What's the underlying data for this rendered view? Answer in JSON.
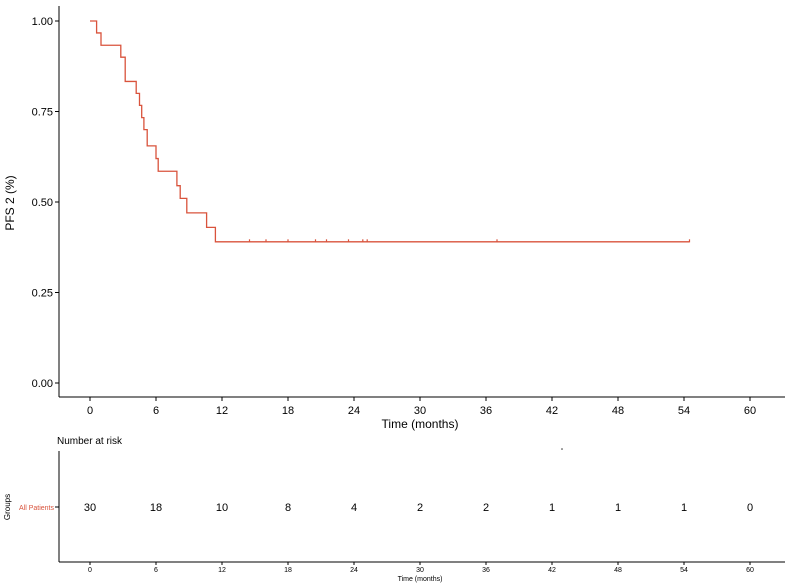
{
  "chart_data": {
    "type": "line",
    "ylabel": "PFS 2 (%)",
    "xlabel": "Time (months)",
    "xlim": [
      0,
      60
    ],
    "ylim": [
      0,
      1
    ],
    "x_ticks": [
      "0",
      "6",
      "12",
      "18",
      "24",
      "30",
      "36",
      "42",
      "48",
      "54",
      "60"
    ],
    "y_ticks": [
      "0.00",
      "0.25",
      "0.50",
      "0.75",
      "1.00"
    ],
    "grid": false,
    "series": [
      {
        "color": "#d9533c",
        "step_points": [
          [
            0,
            1.0
          ],
          [
            0.6,
            1.0
          ],
          [
            0.6,
            0.967
          ],
          [
            1.0,
            0.967
          ],
          [
            1.0,
            0.933
          ],
          [
            2.8,
            0.933
          ],
          [
            2.8,
            0.9
          ],
          [
            3.2,
            0.9
          ],
          [
            3.2,
            0.833
          ],
          [
            4.2,
            0.833
          ],
          [
            4.2,
            0.8
          ],
          [
            4.5,
            0.8
          ],
          [
            4.5,
            0.767
          ],
          [
            4.7,
            0.767
          ],
          [
            4.7,
            0.733
          ],
          [
            4.9,
            0.733
          ],
          [
            4.9,
            0.7
          ],
          [
            5.2,
            0.7
          ],
          [
            5.2,
            0.655
          ],
          [
            6.0,
            0.655
          ],
          [
            6.0,
            0.62
          ],
          [
            6.2,
            0.62
          ],
          [
            6.2,
            0.585
          ],
          [
            7.9,
            0.585
          ],
          [
            7.9,
            0.545
          ],
          [
            8.2,
            0.545
          ],
          [
            8.2,
            0.51
          ],
          [
            8.8,
            0.51
          ],
          [
            8.8,
            0.47
          ],
          [
            10.6,
            0.47
          ],
          [
            10.6,
            0.43
          ],
          [
            11.4,
            0.43
          ],
          [
            11.4,
            0.39
          ],
          [
            54.5,
            0.39
          ]
        ],
        "censor_x": [
          14.5,
          16.0,
          18.0,
          20.5,
          21.5,
          23.5,
          24.8,
          25.2,
          37.0,
          54.5
        ],
        "censor_y": 0.39
      }
    ],
    "risk_table": {
      "title": "Number at risk",
      "groups_label": "Groups",
      "group": "All Patients",
      "group_color": "#d9533c",
      "times": [
        0,
        6,
        12,
        18,
        24,
        30,
        36,
        42,
        48,
        54,
        60
      ],
      "counts": [
        "30",
        "18",
        "10",
        "8",
        "4",
        "2",
        "2",
        "1",
        "1",
        "1",
        "0"
      ],
      "x_ticks": [
        "0",
        "6",
        "12",
        "18",
        "24",
        "30",
        "36",
        "42",
        "48",
        "54",
        "60"
      ],
      "xlabel": "Time (months)"
    }
  }
}
